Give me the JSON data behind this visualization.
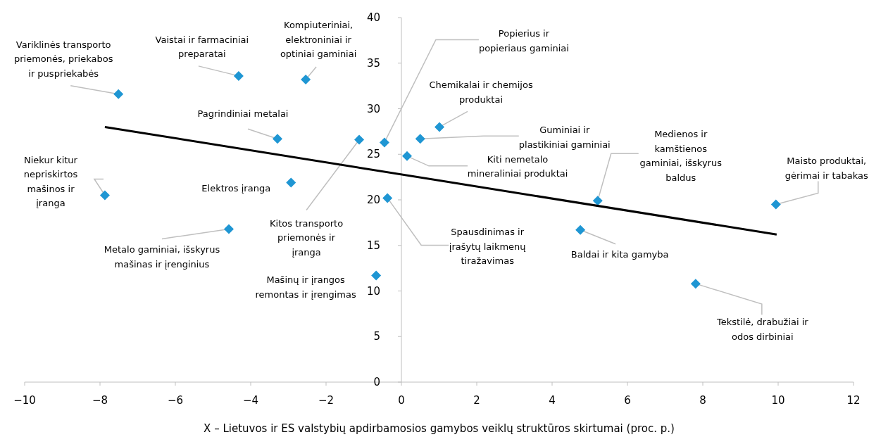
{
  "chart_data": {
    "type": "scatter",
    "xlabel": "X – Lietuvos ir ES valstybių apdirbamosios gamybos veiklų struktūros skirtumai (proc. p.)",
    "xlim": [
      -10,
      12
    ],
    "ylim": [
      0,
      40
    ],
    "xticks": [
      {
        "value": -10,
        "label": "−10"
      },
      {
        "value": -8,
        "label": "−8"
      },
      {
        "value": -6,
        "label": "−6"
      },
      {
        "value": -4,
        "label": "−4"
      },
      {
        "value": -2,
        "label": "−2"
      },
      0,
      2,
      4,
      6,
      8,
      10,
      12
    ],
    "yticks": [
      0,
      5,
      10,
      15,
      20,
      25,
      30,
      35,
      40
    ],
    "grid": false,
    "series": [
      {
        "type": "scatter",
        "color": "#1f96d3",
        "marker": "diamond",
        "x": [
          -7.51,
          -4.32,
          -2.54,
          -3.29,
          -1.12,
          -0.45,
          1.01,
          0.5,
          0.15,
          -7.87,
          -2.93,
          -0.37,
          -4.58,
          -0.67,
          5.21,
          4.75,
          9.94,
          7.81
        ],
        "values": [
          31.6,
          33.6,
          33.2,
          26.7,
          26.6,
          26.3,
          28.0,
          26.7,
          24.8,
          20.5,
          21.9,
          20.2,
          16.8,
          11.7,
          19.9,
          16.7,
          19.5,
          10.8
        ]
      },
      {
        "type": "line",
        "color": "#000000",
        "line_style": "solid",
        "marker": "none",
        "x": [
          -7.87,
          9.96
        ],
        "values": [
          28.0,
          16.2
        ]
      }
    ],
    "annotations": [
      {
        "text": "Variklinės transporto\npriemonės, priekabos\nir puspriekabės",
        "x": -7.51,
        "y": 31.6
      },
      {
        "text": "Vaistai ir farmaciniai\npreparatai",
        "x": -4.32,
        "y": 33.6
      },
      {
        "text": "Kompiuteriniai,\nelektroniniai ir\noptiniai gaminiai",
        "x": -2.54,
        "y": 33.2
      },
      {
        "text": "Pagrindiniai metalai",
        "x": -3.29,
        "y": 26.7
      },
      {
        "text": "Kitos transporto\npriemonės ir\nįranga",
        "x": -1.12,
        "y": 26.6
      },
      {
        "text": "Popierius ir\npopieriaus gaminiai",
        "x": -0.45,
        "y": 26.3
      },
      {
        "text": "Chemikalai ir chemijos\nproduktai",
        "x": 1.01,
        "y": 28.0
      },
      {
        "text": "Guminiai ir\nplastikiniai gaminiai",
        "x": 0.5,
        "y": 26.7
      },
      {
        "text": "Kiti nemetalo\nmineraliniai produktai",
        "x": 0.15,
        "y": 24.8
      },
      {
        "text": "Niekur kitur\nnepriskirtos\nmašinos ir\nįranga",
        "x": -7.87,
        "y": 20.5
      },
      {
        "text": "Elektros įranga",
        "x": -2.93,
        "y": 21.9
      },
      {
        "text": "Spausdinimas ir\nįrašytų laikmenų\ntiražavimas",
        "x": -0.37,
        "y": 20.2
      },
      {
        "text": "Metalo gaminiai, išskyrus\nmašinas ir įrenginius",
        "x": -4.58,
        "y": 16.8
      },
      {
        "text": "Mašinų ir įrangos\nremontas ir įrengimas",
        "x": -0.67,
        "y": 11.7
      },
      {
        "text": "Medienos ir\nkamštienos\ngaminiai, išskyrus\nbaldus",
        "x": 5.21,
        "y": 19.9
      },
      {
        "text": "Baldai ir kita gamyba",
        "x": 4.75,
        "y": 16.7
      },
      {
        "text": "Maisto produktai,\ngėrimai ir tabakas",
        "x": 9.94,
        "y": 19.5
      },
      {
        "text": "Tekstilė, drabužiai ir\nodos dirbiniai",
        "x": 7.81,
        "y": 10.8
      }
    ]
  }
}
